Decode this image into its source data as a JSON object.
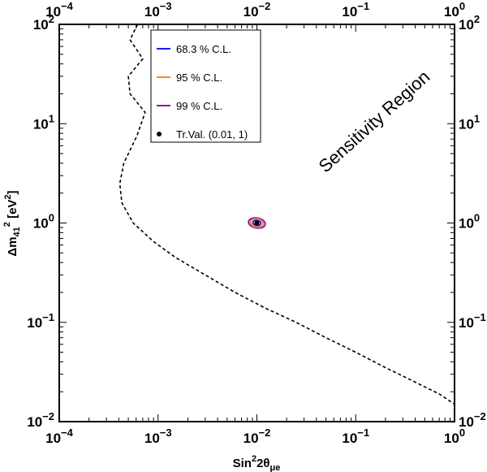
{
  "chart_data": {
    "type": "scatter",
    "x_scale": "log",
    "y_scale": "log",
    "xlim": [
      0.0001,
      1
    ],
    "ylim": [
      0.01,
      100
    ],
    "xlabel": "Sin²2θμe",
    "ylabel": "Δm41² [eV²]",
    "x_ticks": [
      {
        "value": 0.0001,
        "base": "10",
        "exp": "−4"
      },
      {
        "value": 0.001,
        "base": "10",
        "exp": "−3"
      },
      {
        "value": 0.01,
        "base": "10",
        "exp": "−2"
      },
      {
        "value": 0.1,
        "base": "10",
        "exp": "−1"
      },
      {
        "value": 1,
        "base": "10",
        "exp": "0"
      }
    ],
    "y_ticks": [
      {
        "value": 0.01,
        "base": "10",
        "exp": "−2"
      },
      {
        "value": 0.1,
        "base": "10",
        "exp": "−1"
      },
      {
        "value": 1,
        "base": "10",
        "exp": "0"
      },
      {
        "value": 10,
        "base": "10",
        "exp": "1"
      },
      {
        "value": 100,
        "base": "10",
        "exp": "2"
      }
    ],
    "grid": false,
    "legend_position": "top-left",
    "annotation": "Sensitivity Region",
    "sensitivity_curve": {
      "style": "dashed",
      "color": "#000000",
      "points": [
        [
          0.00062,
          100
        ],
        [
          0.00052,
          70
        ],
        [
          0.0007,
          45
        ],
        [
          0.0005,
          30
        ],
        [
          0.00052,
          20
        ],
        [
          0.00074,
          13
        ],
        [
          0.00061,
          7.5
        ],
        [
          0.00045,
          4
        ],
        [
          0.00041,
          2.5
        ],
        [
          0.00043,
          1.6
        ],
        [
          0.00056,
          1.0
        ],
        [
          0.0009,
          0.65
        ],
        [
          0.0015,
          0.45
        ],
        [
          0.003,
          0.3
        ],
        [
          0.006,
          0.2
        ],
        [
          0.012,
          0.14
        ],
        [
          0.025,
          0.1
        ],
        [
          0.05,
          0.07
        ],
        [
          0.1,
          0.05
        ],
        [
          0.2,
          0.035
        ],
        [
          0.4,
          0.025
        ],
        [
          0.7,
          0.019
        ],
        [
          1,
          0.015
        ]
      ]
    },
    "true_value": {
      "label": "Tr.Val. (0.01, 1)",
      "x": 0.01,
      "y": 1,
      "color": "#000000"
    },
    "series": [
      {
        "name": "68.3 % C.L.",
        "color": "#1a1aff",
        "center": [
          0.01,
          1.0
        ],
        "dlogx": 0.04,
        "dlogy": 0.025,
        "tilt": -0.18
      },
      {
        "name": "95 % C.L.",
        "color": "#ff8c1a",
        "center": [
          0.01,
          1.0
        ],
        "dlogx": 0.065,
        "dlogy": 0.04,
        "tilt": -0.18
      },
      {
        "name": "99 % C.L.",
        "color": "#8b1a9e",
        "center": [
          0.01,
          1.0
        ],
        "dlogx": 0.085,
        "dlogy": 0.05,
        "tilt": -0.18
      }
    ]
  }
}
